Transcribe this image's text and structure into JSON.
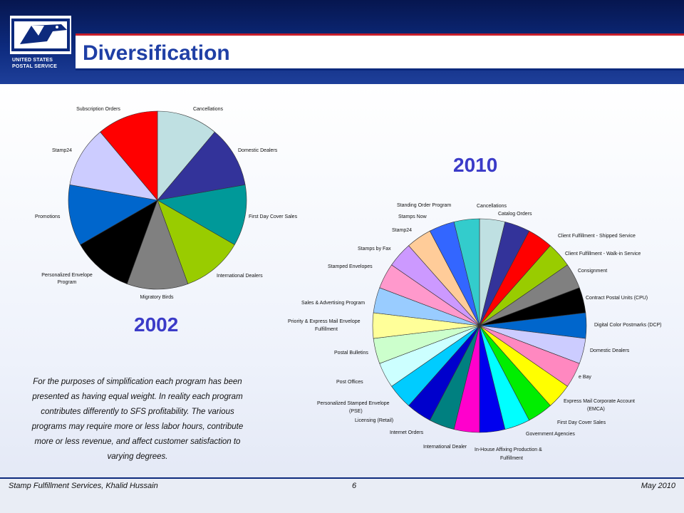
{
  "brand": {
    "line1": "UNITED STATES",
    "line2": "POSTAL SERVICE",
    "accent": "#c81e2a",
    "navy": "#0d2a7d"
  },
  "title": "Diversification",
  "years": {
    "y2002": "2002",
    "y2010": "2010"
  },
  "note": "For the purposes of simplification each program has been presented as having equal weight. In reality each program contributes differently to SFS profitability. The various programs may require more or less labor hours, contribute more or less revenue, and affect customer satisfaction to varying degrees.",
  "footer": {
    "left": "Stamp Fulfillment Services, Khalid Hussain",
    "page": "6",
    "date": "May 2010"
  },
  "chart_data": [
    {
      "type": "pie",
      "title": "2002",
      "slices": [
        {
          "label": "Cancellations",
          "value": 1,
          "color": "#bfe0e2"
        },
        {
          "label": "Domestic Dealers",
          "value": 1,
          "color": "#33339a"
        },
        {
          "label": "First Day Cover Sales",
          "value": 1,
          "color": "#009999"
        },
        {
          "label": "International Dealers",
          "value": 1,
          "color": "#99cc00"
        },
        {
          "label": "Migratory Birds",
          "value": 1,
          "color": "#808080"
        },
        {
          "label": "Personalized Envelope Program",
          "value": 1,
          "color": "#000000"
        },
        {
          "label": "Promotions",
          "value": 1,
          "color": "#0066cc"
        },
        {
          "label": "Stamp24",
          "value": 1,
          "color": "#ccccff"
        },
        {
          "label": "Subscription Orders",
          "value": 1,
          "color": "#ff0000"
        }
      ]
    },
    {
      "type": "pie",
      "title": "2010",
      "slices": [
        {
          "label": "Cancellations",
          "value": 1,
          "color": "#bfe0e2"
        },
        {
          "label": "Catalog Orders",
          "value": 1,
          "color": "#33339a"
        },
        {
          "label": "Client Fulfillment - Shipped Service",
          "value": 1,
          "color": "#ff0000"
        },
        {
          "label": "Client Fulfillment - Walk-in Service",
          "value": 1,
          "color": "#99cc00"
        },
        {
          "label": "Consignment",
          "value": 1,
          "color": "#808080"
        },
        {
          "label": "Contract Postal Units (CPU)",
          "value": 1,
          "color": "#000000"
        },
        {
          "label": "Digital Color Postmarks (DCP)",
          "value": 1,
          "color": "#0066cc"
        },
        {
          "label": "Domestic Dealers",
          "value": 1,
          "color": "#ccccff"
        },
        {
          "label": "e Bay",
          "value": 1,
          "color": "#ff88c0"
        },
        {
          "label": "Express Mail Corporate Account (EMCA)",
          "value": 1,
          "color": "#ffff00"
        },
        {
          "label": "First Day Cover Sales",
          "value": 1,
          "color": "#00ee00"
        },
        {
          "label": "Government Agencies",
          "value": 1,
          "color": "#00ffff"
        },
        {
          "label": "In-House Affixing Production & Fulfillment",
          "value": 1,
          "color": "#0000ee"
        },
        {
          "label": "International Dealer",
          "value": 1,
          "color": "#ff00cc"
        },
        {
          "label": "Internet Orders",
          "value": 1,
          "color": "#008080"
        },
        {
          "label": "Licensing (Retail)",
          "value": 1,
          "color": "#0000cc"
        },
        {
          "label": "Personalized Stamped Envelope (PSE)",
          "value": 1,
          "color": "#00ccff"
        },
        {
          "label": "Post Offices",
          "value": 1,
          "color": "#ccffff"
        },
        {
          "label": "Postal Bulletins",
          "value": 1,
          "color": "#ccffcc"
        },
        {
          "label": "Priority & Express Mail Envelope Fulfillment",
          "value": 1,
          "color": "#ffff99"
        },
        {
          "label": "Sales & Advertising Program",
          "value": 1,
          "color": "#99ccff"
        },
        {
          "label": "Stamped Envelopes",
          "value": 1,
          "color": "#ff99cc"
        },
        {
          "label": "Stamps by Fax",
          "value": 1,
          "color": "#cc99ff"
        },
        {
          "label": "Stamp24",
          "value": 1,
          "color": "#ffcc99"
        },
        {
          "label": "Stamps Now",
          "value": 1,
          "color": "#3366ff"
        },
        {
          "label": "Standing Order Program",
          "value": 1,
          "color": "#33cccc"
        }
      ]
    }
  ]
}
